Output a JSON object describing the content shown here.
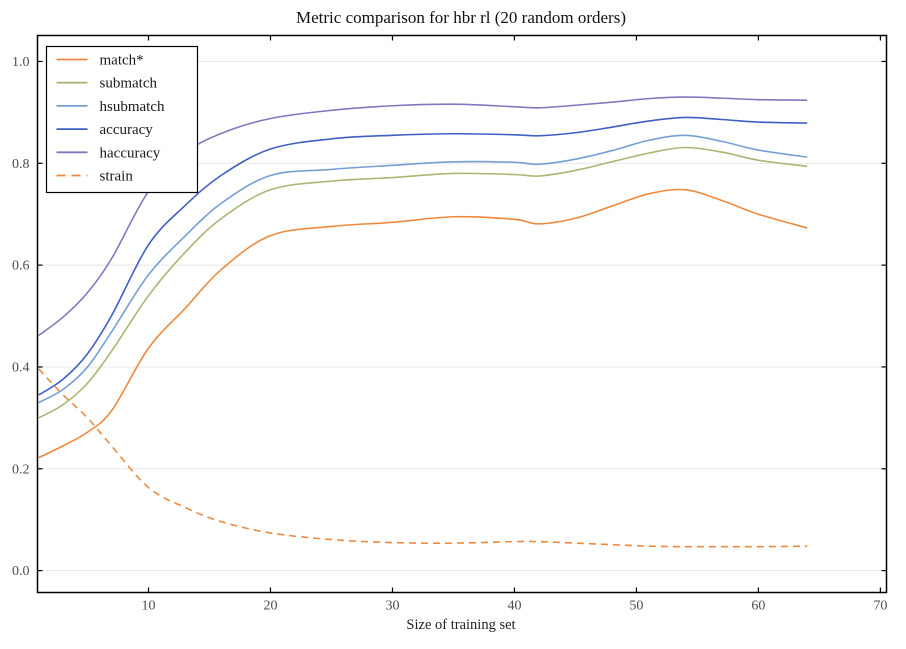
{
  "chart_data": {
    "type": "line",
    "title": "Metric comparison for hbr rl (20 random orders)",
    "xlabel": "Size of training set",
    "ylabel": "",
    "xlim": [
      0.9,
      70.5
    ],
    "ylim": [
      -0.043,
      1.051
    ],
    "xticks": [
      10,
      20,
      30,
      40,
      50,
      60,
      70
    ],
    "xtick_labels": [
      "10",
      "20",
      "30",
      "40",
      "50",
      "60",
      "70"
    ],
    "yticks": [
      0.0,
      0.2,
      0.4,
      0.6,
      0.8,
      1.0
    ],
    "ytick_labels": [
      "0.0",
      "0.2",
      "0.4",
      "0.6",
      "0.8",
      "1.0"
    ],
    "grid": "horizontal-only",
    "grid_color": "#e7e7e7",
    "spine_color": "#000000",
    "legend_position": "upper-left",
    "x": [
      1,
      3,
      5,
      7,
      10,
      13,
      16,
      20,
      25,
      30,
      35,
      40,
      42,
      45,
      48,
      51,
      54,
      57,
      60,
      64
    ],
    "series": [
      {
        "name": "match*",
        "color": "#ee8a3e",
        "style": "solid",
        "values": [
          0.222,
          0.245,
          0.272,
          0.315,
          0.437,
          0.515,
          0.592,
          0.658,
          0.676,
          0.684,
          0.695,
          0.69,
          0.681,
          0.692,
          0.716,
          0.74,
          0.748,
          0.727,
          0.7,
          0.673
        ]
      },
      {
        "name": "submatch",
        "color": "#a8b873",
        "style": "solid",
        "values": [
          0.3,
          0.326,
          0.368,
          0.432,
          0.54,
          0.625,
          0.692,
          0.748,
          0.765,
          0.772,
          0.78,
          0.778,
          0.775,
          0.786,
          0.803,
          0.82,
          0.831,
          0.822,
          0.806,
          0.794
        ]
      },
      {
        "name": "hsubmatch",
        "color": "#74a0d6",
        "style": "solid",
        "values": [
          0.33,
          0.356,
          0.4,
          0.47,
          0.581,
          0.657,
          0.722,
          0.776,
          0.788,
          0.796,
          0.803,
          0.802,
          0.798,
          0.808,
          0.825,
          0.845,
          0.855,
          0.843,
          0.826,
          0.812
        ]
      },
      {
        "name": "accuracy",
        "color": "#3e60c4",
        "style": "solid",
        "values": [
          0.345,
          0.376,
          0.426,
          0.502,
          0.64,
          0.717,
          0.777,
          0.828,
          0.848,
          0.855,
          0.858,
          0.856,
          0.854,
          0.86,
          0.871,
          0.883,
          0.89,
          0.886,
          0.881,
          0.879
        ]
      },
      {
        "name": "haccuracy",
        "color": "#8477bf",
        "style": "solid",
        "values": [
          0.462,
          0.498,
          0.546,
          0.614,
          0.745,
          0.82,
          0.859,
          0.888,
          0.904,
          0.913,
          0.916,
          0.911,
          0.909,
          0.914,
          0.92,
          0.927,
          0.93,
          0.928,
          0.925,
          0.924
        ]
      },
      {
        "name": "strain",
        "color": "#ee8a3e",
        "style": "dashed",
        "values": [
          0.396,
          0.345,
          0.3,
          0.244,
          0.163,
          0.124,
          0.096,
          0.074,
          0.061,
          0.055,
          0.054,
          0.057,
          0.057,
          0.054,
          0.051,
          0.048,
          0.047,
          0.047,
          0.047,
          0.048
        ]
      }
    ]
  }
}
